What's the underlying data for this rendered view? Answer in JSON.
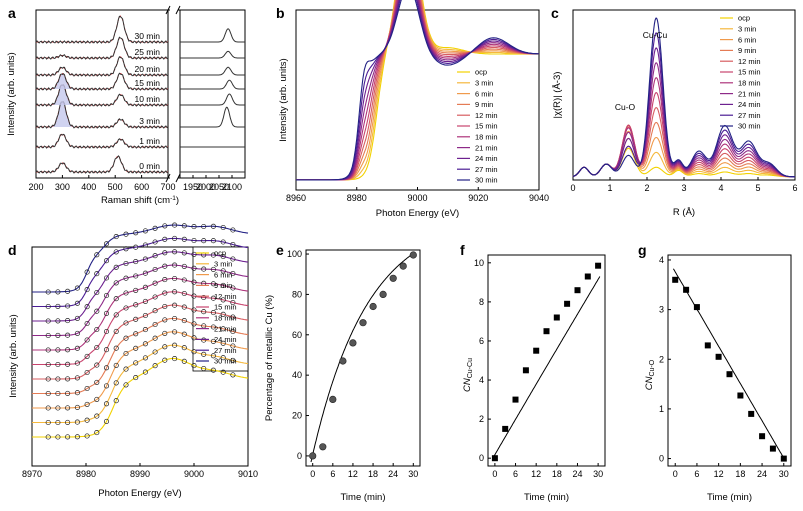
{
  "chart_data": [
    {
      "panel": "a",
      "type": "line",
      "xlabel": "Raman shift (cm-1)",
      "ylabel": "Intensity (arb. units)",
      "xlim_left": [
        200,
        700
      ],
      "xlim_right": [
        1900,
        2150
      ],
      "xticks": [
        "200",
        "300",
        "400",
        "500",
        "600",
        "700",
        "1950",
        "2000",
        "2050",
        "2100"
      ],
      "series": [
        {
          "name": "0 min",
          "peaks_left": [
            [
              300,
              0.35
            ],
            [
              510,
              0.6
            ]
          ],
          "peaks_right": []
        },
        {
          "name": "1 min",
          "peaks_left": [
            [
              300,
              0.5
            ],
            [
              520,
              0.3
            ]
          ],
          "peaks_right": []
        },
        {
          "name": "3 min",
          "peaks_left": [
            [
              300,
              1.0
            ],
            [
              520,
              0.3
            ]
          ],
          "peaks_right": [
            [
              2080,
              0.9
            ]
          ]
        },
        {
          "name": "10 min",
          "peaks_left": [
            [
              300,
              0.8
            ],
            [
              520,
              0.4
            ]
          ],
          "peaks_right": [
            [
              2090,
              0.5
            ]
          ]
        },
        {
          "name": "15 min",
          "peaks_left": [
            [
              300,
              0.6
            ],
            [
              520,
              0.6
            ]
          ],
          "peaks_right": [
            [
              2090,
              0.4
            ]
          ]
        },
        {
          "name": "20 min",
          "peaks_left": [
            [
              300,
              0.3
            ],
            [
              520,
              0.7
            ]
          ],
          "peaks_right": [
            [
              2085,
              0.35
            ]
          ]
        },
        {
          "name": "25 min",
          "peaks_left": [
            [
              300,
              0.1
            ],
            [
              520,
              0.8
            ]
          ],
          "peaks_right": [
            [
              2085,
              0.3
            ]
          ]
        },
        {
          "name": "30 min",
          "peaks_left": [
            [
              520,
              1.0
            ]
          ],
          "peaks_right": [
            [
              2085,
              0.6
            ]
          ]
        }
      ]
    },
    {
      "panel": "b",
      "type": "line",
      "xlabel": "Photon Energy (eV)",
      "ylabel": "Intensity (arb. units)",
      "xlim": [
        8960,
        9040
      ],
      "xticks": [
        "8960",
        "8980",
        "9000",
        "9020",
        "9040"
      ],
      "series": [
        "ocp",
        "3 min",
        "6 min",
        "9 min",
        "12 min",
        "15 min",
        "18 min",
        "21 min",
        "24 min",
        "27 min",
        "30 min"
      ]
    },
    {
      "panel": "c",
      "type": "line",
      "xlabel": "R (Å)",
      "ylabel": "|χ(R)| (Å-3)",
      "xlim": [
        0,
        6
      ],
      "xticks": [
        "0",
        "1",
        "2",
        "3",
        "4",
        "5",
        "6"
      ],
      "annotations": [
        "Cu-Cu",
        "Cu-O"
      ],
      "series": [
        "ocp",
        "3 min",
        "6 min",
        "9 min",
        "12 min",
        "15 min",
        "18 min",
        "21 min",
        "24 min",
        "27 min",
        "30 min"
      ]
    },
    {
      "panel": "d",
      "type": "line",
      "xlabel": "Photon Energy (eV)",
      "ylabel": "Intensity (arb. units)",
      "xlim": [
        8970,
        9010
      ],
      "xticks": [
        "8970",
        "8980",
        "8990",
        "9000",
        "9010"
      ],
      "series": [
        "ocp",
        "3 min",
        "6 min",
        "9 min",
        "12 min",
        "15 min",
        "18 min",
        "21 min",
        "24 min",
        "27 min",
        "30 min"
      ]
    },
    {
      "panel": "e",
      "type": "scatter",
      "xlabel": "Time (min)",
      "ylabel": "Percentage of metallic Cu (%)",
      "xlim": [
        -2,
        32
      ],
      "ylim": [
        -5,
        102
      ],
      "xticks": [
        "0",
        "6",
        "12",
        "18",
        "24",
        "30"
      ],
      "yticks": [
        "0",
        "20",
        "40",
        "60",
        "80",
        "100"
      ],
      "x": [
        0,
        3,
        6,
        9,
        12,
        15,
        18,
        21,
        24,
        27,
        30
      ],
      "y": [
        0,
        4.5,
        28,
        47,
        56,
        66,
        74,
        80,
        88,
        94,
        99.5
      ]
    },
    {
      "panel": "f",
      "type": "scatter",
      "xlabel": "Time (min)",
      "ylabel": "CN Cu-Cu",
      "xlim": [
        -2,
        32
      ],
      "ylim": [
        -0.4,
        10.4
      ],
      "xticks": [
        "0",
        "6",
        "12",
        "18",
        "24",
        "30"
      ],
      "yticks": [
        "0",
        "2",
        "4",
        "6",
        "8",
        "10"
      ],
      "x": [
        0,
        3,
        6,
        9,
        12,
        15,
        18,
        21,
        24,
        27,
        30
      ],
      "y": [
        0,
        1.5,
        3.0,
        4.5,
        5.5,
        6.5,
        7.2,
        7.9,
        8.6,
        9.3,
        9.85
      ]
    },
    {
      "panel": "g",
      "type": "scatter",
      "xlabel": "Time (min)",
      "ylabel": "CN Cu-O",
      "xlim": [
        -2,
        32
      ],
      "ylim": [
        -0.15,
        4.1
      ],
      "xticks": [
        "0",
        "6",
        "12",
        "18",
        "24",
        "30"
      ],
      "yticks": [
        "0",
        "1",
        "2",
        "3",
        "4"
      ],
      "x": [
        0,
        3,
        6,
        9,
        12,
        15,
        18,
        21,
        24,
        27,
        30
      ],
      "y": [
        3.6,
        3.4,
        3.05,
        2.28,
        2.05,
        1.7,
        1.27,
        0.9,
        0.45,
        0.2,
        0.0
      ]
    }
  ]
}
